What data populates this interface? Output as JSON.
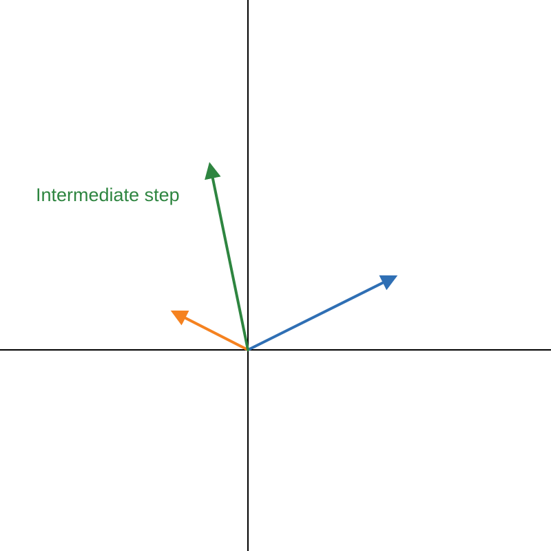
{
  "colors": {
    "background": "#ffffff",
    "axis": "#000000",
    "blue": "#2f6fb4",
    "orange": "#f58220",
    "green": "#2e8540"
  },
  "vectors": [
    {
      "id": "blue",
      "dx": 2.13,
      "dy": 1.06,
      "color": "#2f6fb4"
    },
    {
      "id": "orange",
      "dx": -1.08,
      "dy": 0.55,
      "color": "#f58220"
    },
    {
      "id": "green",
      "dx": -0.55,
      "dy": 2.68,
      "color": "#2e8540"
    }
  ],
  "labels": {
    "intermediate": "Intermediate step"
  }
}
